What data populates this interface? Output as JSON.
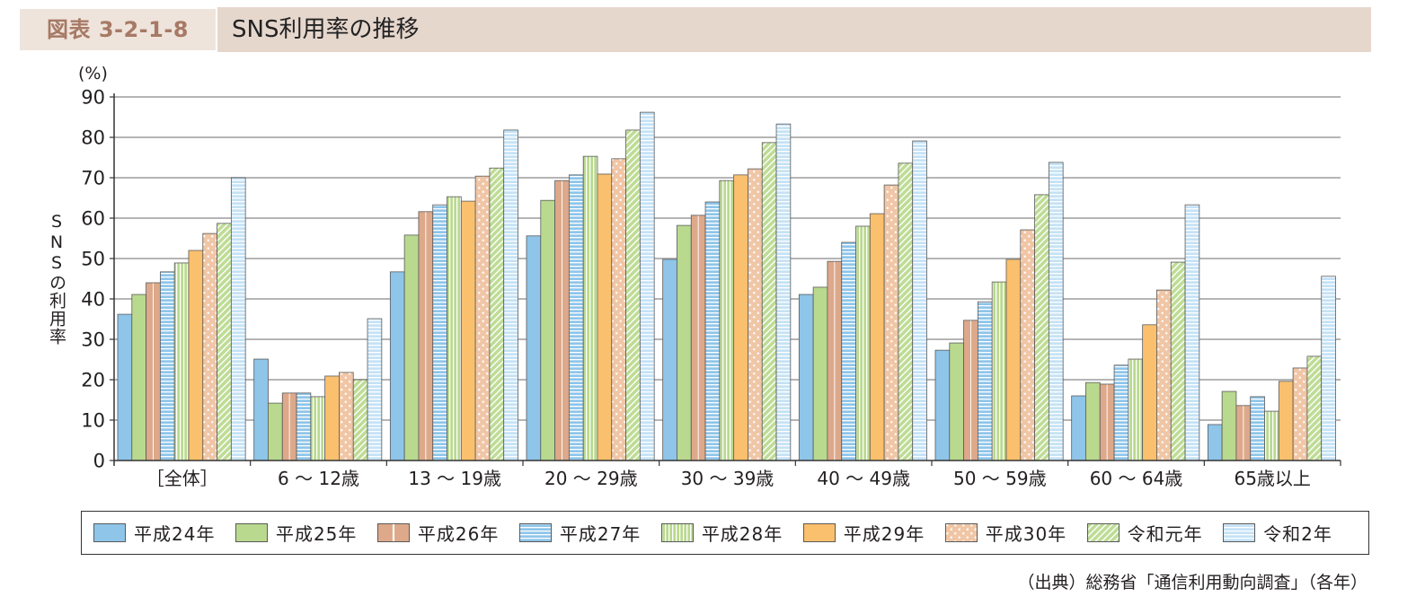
{
  "header": {
    "figure_no": "図表 3-2-1-8"
  },
  "chart_data": {
    "type": "bar",
    "title": "SNS利用率の推移",
    "xlabel": "",
    "ylabel": "SNSの利用率",
    "yunit": "(%)",
    "ylim": [
      0,
      90
    ],
    "yticks": [
      0,
      10,
      20,
      30,
      40,
      50,
      60,
      70,
      80,
      90
    ],
    "grid": true,
    "legend_position": "bottom",
    "categories": [
      "［全体］",
      "6 ～ 12歳",
      "13 ～ 19歳",
      "20 ～ 29歳",
      "30 ～ 39歳",
      "40 ～ 49歳",
      "50 ～ 59歳",
      "60 ～ 64歳",
      "65歳以上"
    ],
    "series": [
      {
        "name": "平成24年",
        "color": "#8ec5e9",
        "values": [
          36.2,
          25.1,
          46.7,
          55.6,
          49.8,
          41.1,
          27.3,
          16.0,
          8.9
        ]
      },
      {
        "name": "平成25年",
        "color": "#b9d98e",
        "values": [
          41.1,
          14.2,
          55.8,
          64.4,
          58.2,
          42.9,
          29.1,
          19.3,
          17.1
        ]
      },
      {
        "name": "平成26年",
        "color": "#dda98a",
        "values": [
          44.0,
          16.7,
          61.6,
          69.3,
          60.7,
          49.3,
          34.7,
          18.9,
          13.6
        ]
      },
      {
        "name": "平成27年",
        "color": "#8ec5e9",
        "values": [
          46.7,
          16.7,
          63.3,
          70.7,
          64.0,
          54.0,
          39.3,
          23.6,
          15.8
        ]
      },
      {
        "name": "平成28年",
        "color": "#b9d98e",
        "values": [
          48.9,
          15.8,
          65.3,
          75.3,
          69.3,
          58.0,
          44.2,
          25.1,
          12.2
        ]
      },
      {
        "name": "平成29年",
        "color": "#fbc06d",
        "values": [
          52.0,
          20.9,
          64.2,
          70.9,
          70.7,
          61.1,
          49.8,
          33.6,
          19.6
        ]
      },
      {
        "name": "平成30年",
        "color": "#f0c6a6",
        "values": [
          56.2,
          21.8,
          70.4,
          74.7,
          72.2,
          68.2,
          57.1,
          42.2,
          22.9
        ]
      },
      {
        "name": "令和元年",
        "color": "#bedc95",
        "values": [
          58.7,
          20.0,
          72.4,
          81.8,
          78.7,
          73.6,
          65.8,
          49.1,
          25.8
        ]
      },
      {
        "name": "令和2年",
        "color": "#c4e2f6",
        "values": [
          70.0,
          35.1,
          81.8,
          86.2,
          83.3,
          79.1,
          73.8,
          63.3,
          45.6
        ]
      }
    ]
  },
  "source": "（出典）総務省「通信利用動向調査」（各年）"
}
